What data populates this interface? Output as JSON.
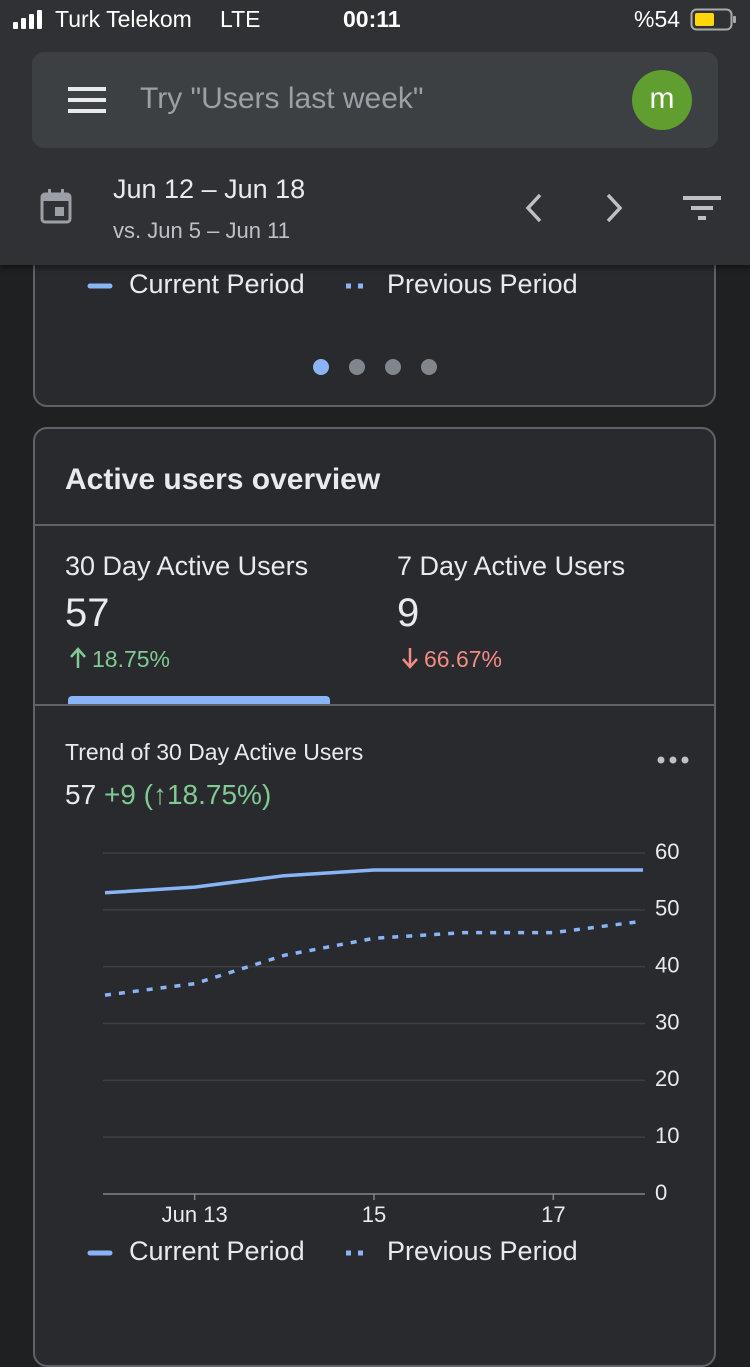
{
  "status_bar": {
    "carrier": "Turk Telekom",
    "network": "LTE",
    "time": "00:11",
    "battery": "%54"
  },
  "search": {
    "placeholder": "Try \"Users last week\"",
    "avatar": "m"
  },
  "date_range": {
    "current": "Jun 12 – Jun 18",
    "comparison": "vs. Jun 5 – Jun 11"
  },
  "card": {
    "title": "Active users overview",
    "metrics": [
      {
        "label": "30 Day Active Users",
        "value": 57,
        "change": "18.75%"
      },
      {
        "label": "7 Day Active Users",
        "value": 9,
        "change": "66.67%"
      }
    ],
    "trend": {
      "title": "Trend of 30 Day Active Users",
      "value": 57,
      "delta": "+9",
      "delta_percent": "(↑18.75%)"
    }
  },
  "chart_data": {
    "type": "line",
    "categories": [
      null,
      "Jun 13",
      null,
      "15",
      null,
      "17",
      null
    ],
    "series": [
      {
        "name": "Current Period",
        "color": "#8ab4f8",
        "values": [
          53,
          54,
          56,
          57,
          57,
          57,
          57
        ]
      },
      {
        "name": "Previous Period",
        "color": "#8ab4f8",
        "values": [
          35,
          37,
          42,
          45,
          46,
          46,
          48
        ]
      }
    ],
    "ylim": [
      0,
      60
    ],
    "yticks": [
      0,
      10,
      20,
      30,
      40,
      50,
      60
    ],
    "grid": true
  }
}
